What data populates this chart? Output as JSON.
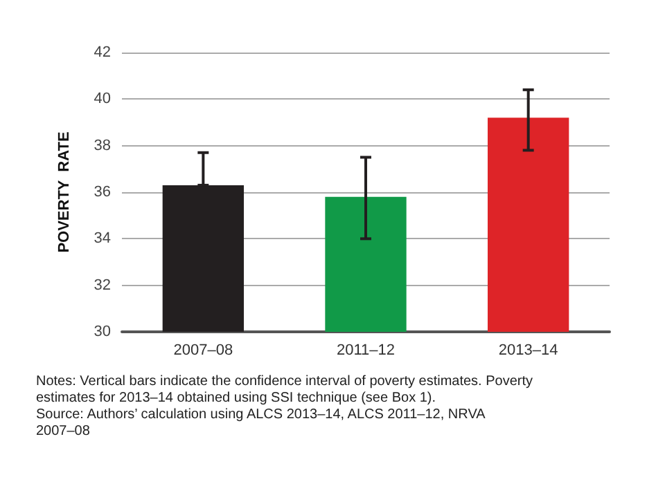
{
  "chart_data": {
    "type": "bar",
    "ylabel": "POVERTY  RATE",
    "categories": [
      "2007–08",
      "2011–12",
      "2013–14"
    ],
    "values": [
      36.3,
      35.8,
      39.2
    ],
    "colors": [
      "#231f20",
      "#119a48",
      "#de2428"
    ],
    "errors": [
      [
        36.3,
        37.7
      ],
      [
        34.0,
        37.5
      ],
      [
        37.8,
        40.4
      ]
    ],
    "ylim": [
      30,
      42
    ],
    "yticks": [
      30,
      32,
      34,
      36,
      38,
      40,
      42
    ],
    "grid": "y",
    "annotations": [
      "Notes: Vertical bars indicate the confidence interval of poverty estimates. Poverty estimates for 2013–14 obtained using SSI technique (see Box 1).",
      "Source: Authors’ calculation using ALCS 2013–14, ALCS 2011–12, NRVA 2007–08"
    ]
  }
}
